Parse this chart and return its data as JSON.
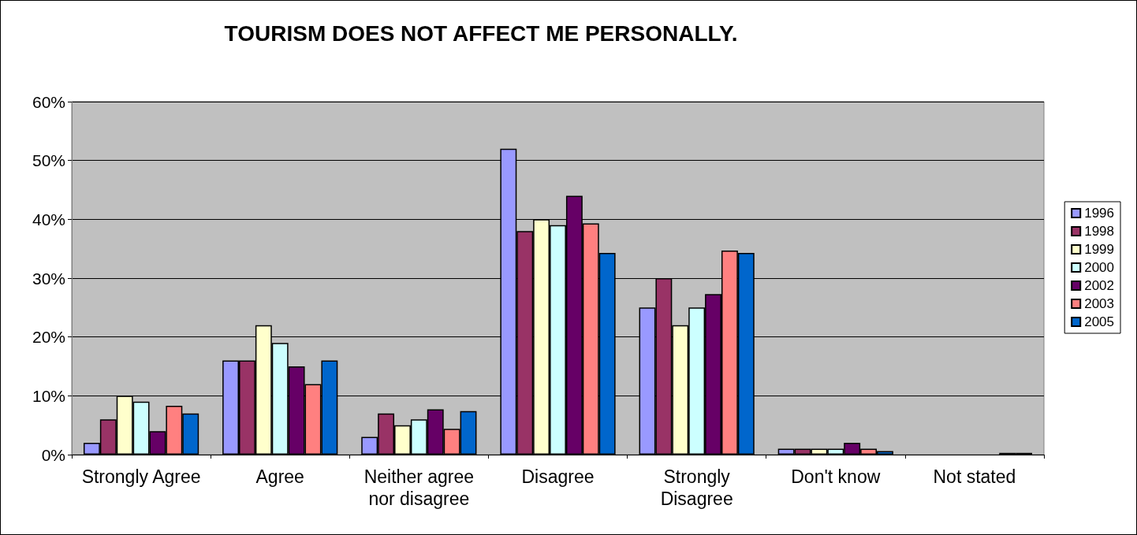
{
  "chart_data": {
    "type": "bar",
    "title": "TOURISM DOES NOT AFFECT ME PERSONALLY.",
    "categories": [
      "Strongly Agree",
      "Agree",
      "Neither agree\nnor disagree",
      "Disagree",
      "Strongly\nDisagree",
      "Don't know",
      "Not stated"
    ],
    "series": [
      {
        "name": "1996",
        "color": "#9999ff",
        "values": [
          2,
          16,
          3,
          52,
          25,
          1,
          null
        ]
      },
      {
        "name": "1998",
        "color": "#993366",
        "values": [
          6,
          16,
          7,
          38,
          30,
          1,
          null
        ]
      },
      {
        "name": "1999",
        "color": "#ffffcc",
        "values": [
          10,
          22,
          5,
          40,
          22,
          1,
          null
        ]
      },
      {
        "name": "2000",
        "color": "#ccffff",
        "values": [
          9,
          19,
          6,
          39,
          25,
          1,
          null
        ]
      },
      {
        "name": "2002",
        "color": "#660066",
        "values": [
          4,
          15,
          7.7,
          44,
          27.3,
          2,
          null
        ]
      },
      {
        "name": "2003",
        "color": "#ff8080",
        "values": [
          8.3,
          12,
          4.4,
          39.3,
          34.7,
          1,
          0.3
        ]
      },
      {
        "name": "2005",
        "color": "#0066cc",
        "values": [
          7,
          16,
          7.4,
          34.3,
          34.3,
          0.6,
          0.3
        ]
      }
    ],
    "ylim": [
      0,
      60
    ],
    "yticks": [
      {
        "value": 0,
        "label": "0%"
      },
      {
        "value": 10,
        "label": "10%"
      },
      {
        "value": 20,
        "label": "20%"
      },
      {
        "value": 30,
        "label": "30%"
      },
      {
        "value": 40,
        "label": "40%"
      },
      {
        "value": 50,
        "label": "50%"
      },
      {
        "value": 60,
        "label": "60%"
      }
    ],
    "grid": "y",
    "legend": "right"
  }
}
